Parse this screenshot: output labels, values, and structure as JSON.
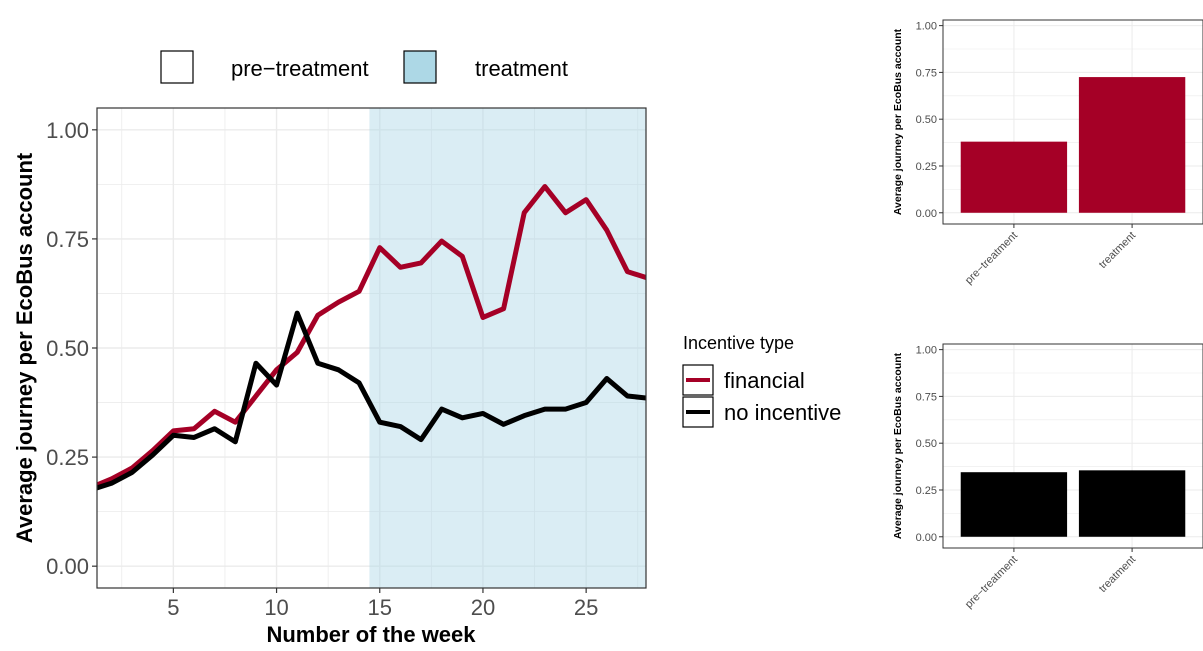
{
  "colors": {
    "financial": "#a50026",
    "no_incentive": "#000000",
    "treatment_shade": "#add8e6",
    "grid": "#ebebeb",
    "axis_text": "#4d4d4d"
  },
  "legend_period": {
    "items": [
      "pre−treatment",
      "treatment"
    ]
  },
  "legend_incentive": {
    "title": "Incentive type",
    "items": [
      "financial",
      "no incentive"
    ]
  },
  "chart_data": [
    {
      "type": "line",
      "xlabel": "Number of the week",
      "ylabel": "Average journey per EcoBus account",
      "xlim": [
        1.3,
        27.9
      ],
      "ylim": [
        -0.05,
        1.05
      ],
      "x_ticks": [
        5,
        10,
        15,
        20,
        25
      ],
      "y_ticks": [
        0.0,
        0.25,
        0.5,
        0.75,
        1.0
      ],
      "y_tick_labels": [
        "0.00",
        "0.25",
        "0.50",
        "0.75",
        "1.00"
      ],
      "shaded_region": {
        "label": "treatment",
        "x_from": 14.5,
        "x_to": 27.9
      },
      "x": [
        1,
        2,
        3,
        4,
        5,
        6,
        7,
        8,
        9,
        10,
        11,
        12,
        13,
        14,
        15,
        16,
        17,
        18,
        19,
        20,
        21,
        22,
        23,
        24,
        25,
        26,
        27,
        28
      ],
      "series": [
        {
          "name": "financial",
          "values": [
            0.18,
            0.2,
            0.225,
            0.265,
            0.31,
            0.315,
            0.355,
            0.33,
            0.39,
            0.45,
            0.49,
            0.575,
            0.605,
            0.63,
            0.73,
            0.685,
            0.695,
            0.745,
            0.71,
            0.57,
            0.59,
            0.81,
            0.87,
            0.81,
            0.84,
            0.77,
            0.675,
            0.66
          ]
        },
        {
          "name": "no incentive",
          "values": [
            0.175,
            0.19,
            0.215,
            0.255,
            0.3,
            0.295,
            0.315,
            0.285,
            0.465,
            0.415,
            0.58,
            0.465,
            0.45,
            0.42,
            0.33,
            0.32,
            0.29,
            0.36,
            0.34,
            0.35,
            0.325,
            0.345,
            0.36,
            0.36,
            0.375,
            0.43,
            0.39,
            0.385
          ]
        }
      ],
      "legend": "right"
    },
    {
      "type": "bar",
      "series_name": "financial",
      "ylabel": "Average journey per EcoBus account",
      "categories": [
        "pre−treatment",
        "treatment"
      ],
      "values": [
        0.38,
        0.725
      ],
      "ylim": [
        -0.06,
        1.03
      ],
      "y_ticks": [
        0.0,
        0.25,
        0.5,
        0.75,
        1.0
      ],
      "y_tick_labels": [
        "0.00",
        "0.25",
        "0.50",
        "0.75",
        "1.00"
      ]
    },
    {
      "type": "bar",
      "series_name": "no incentive",
      "ylabel": "Average journey per EcoBus account",
      "categories": [
        "pre−treatment",
        "treatment"
      ],
      "values": [
        0.345,
        0.355
      ],
      "ylim": [
        -0.06,
        1.03
      ],
      "y_ticks": [
        0.0,
        0.25,
        0.5,
        0.75,
        1.0
      ],
      "y_tick_labels": [
        "0.00",
        "0.25",
        "0.50",
        "0.75",
        "1.00"
      ]
    }
  ]
}
